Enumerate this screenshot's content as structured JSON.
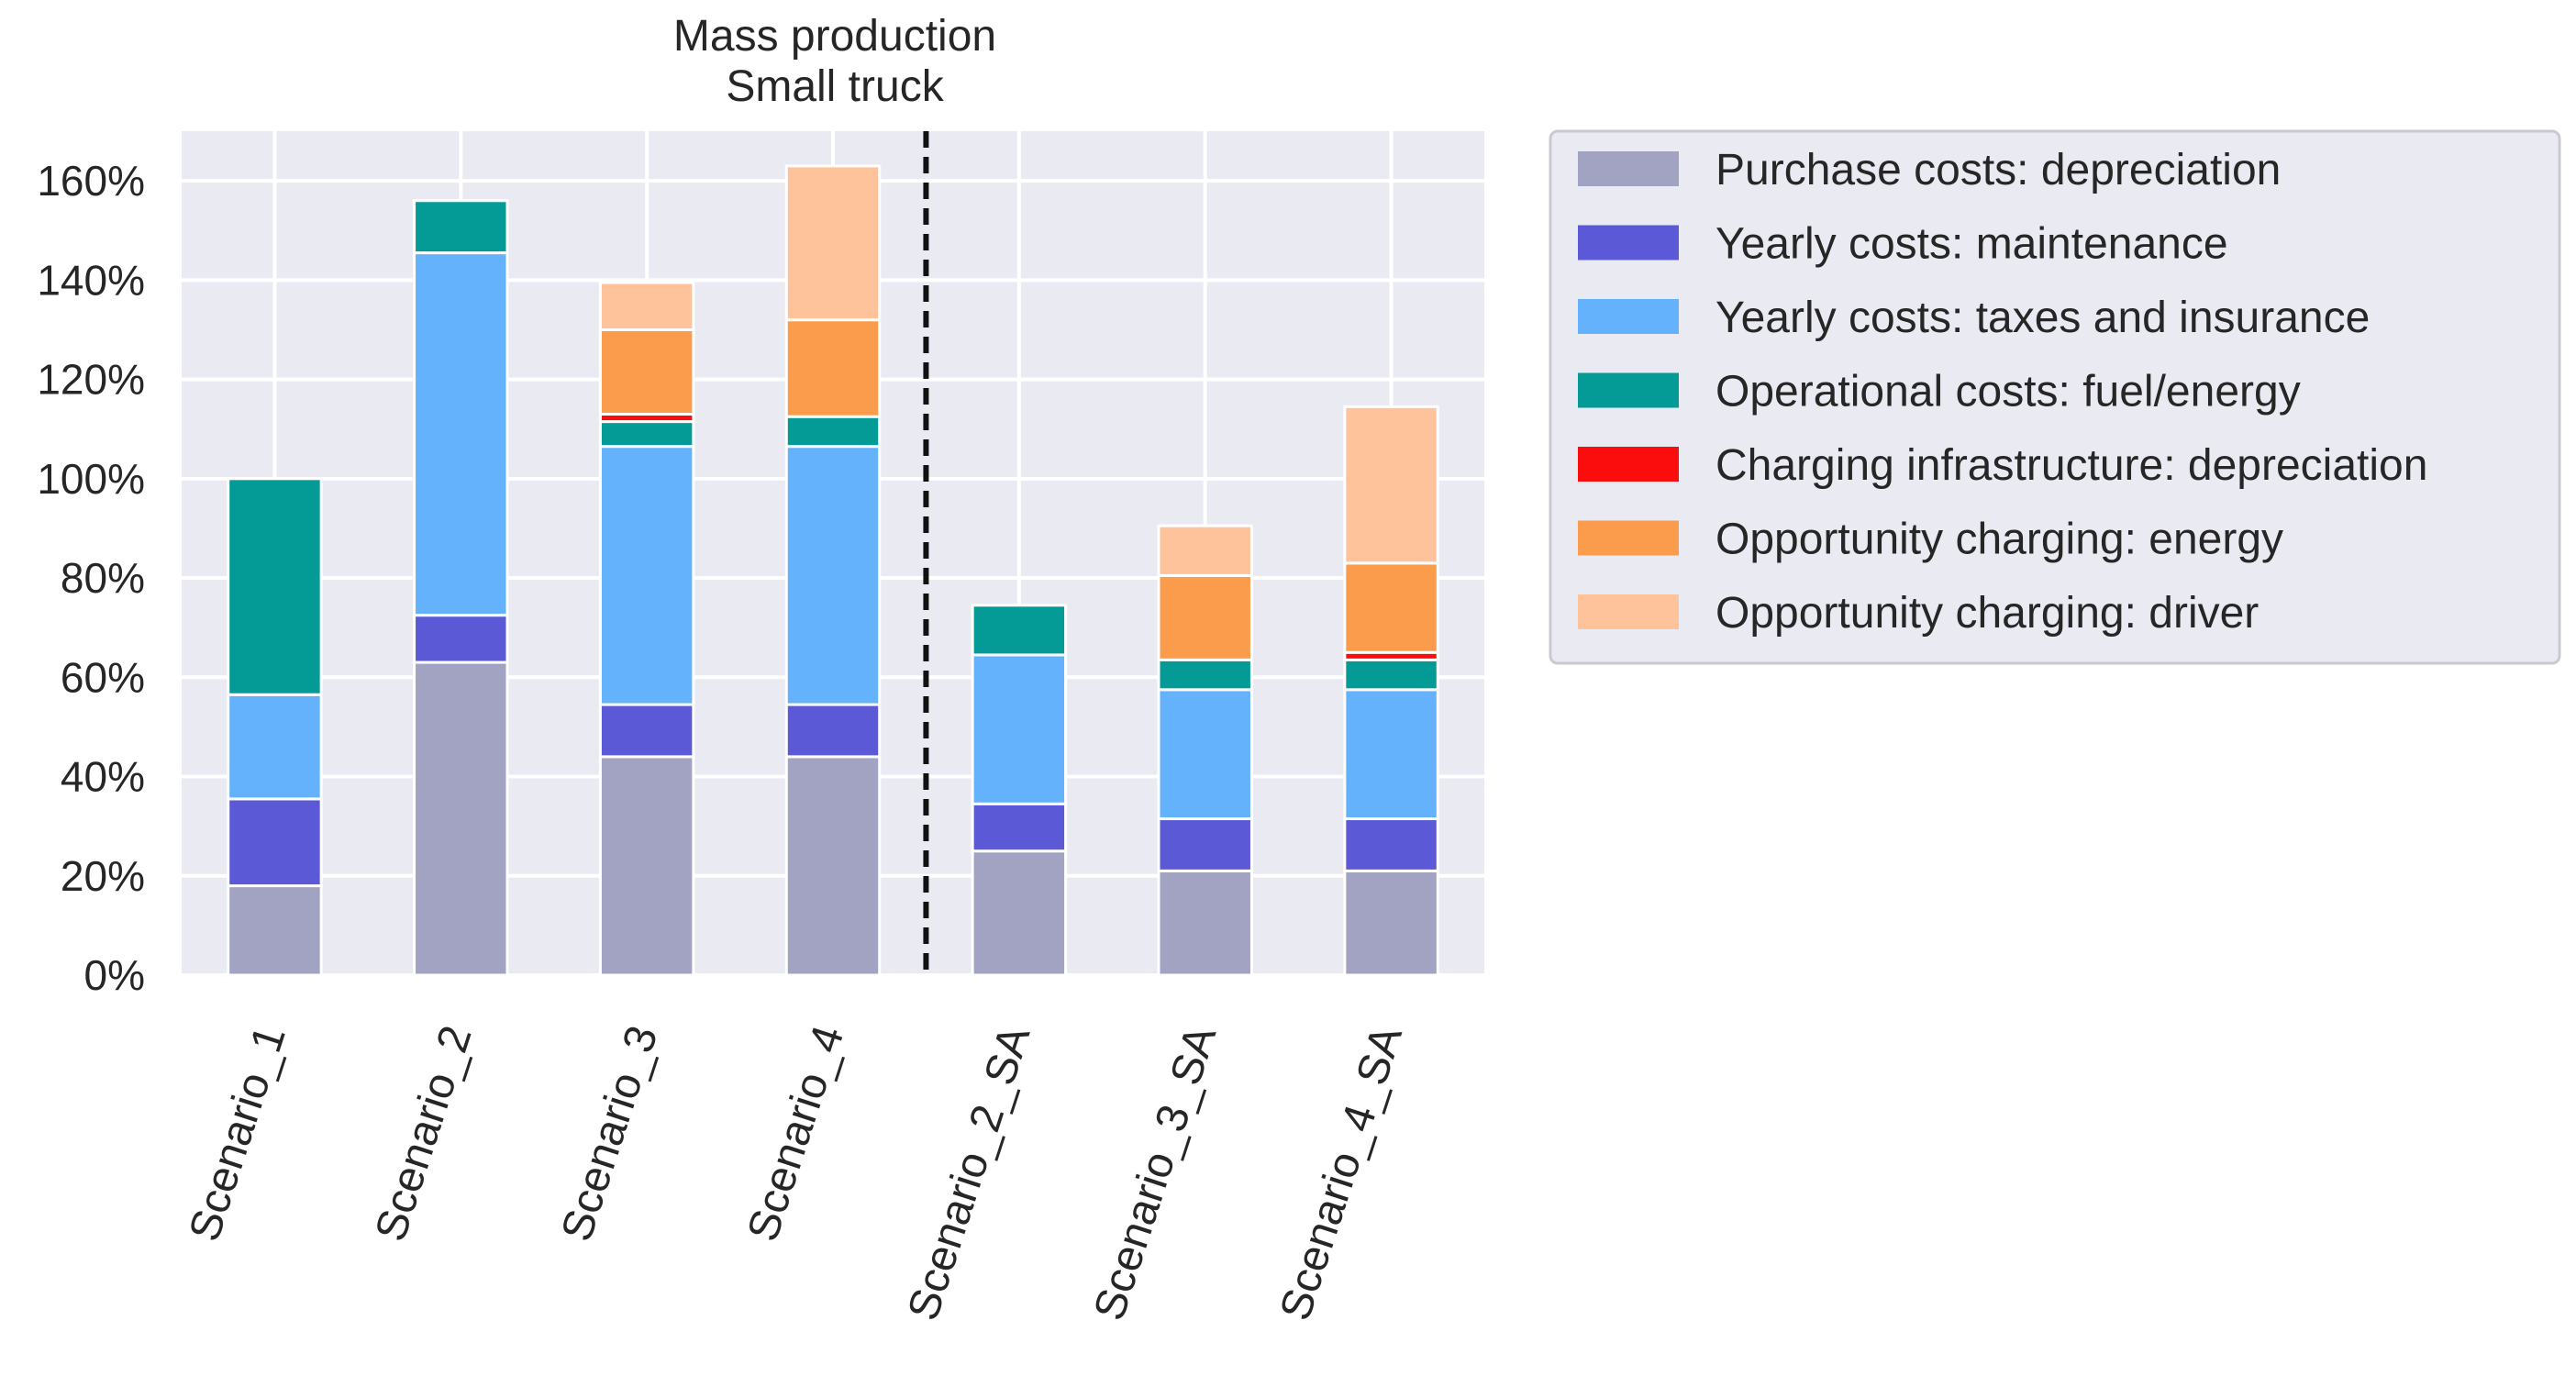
{
  "chart_data": {
    "type": "bar",
    "stacked": true,
    "title_lines": [
      "Mass production",
      "Small truck"
    ],
    "xlabel": "",
    "ylabel": "",
    "ylim": [
      0,
      170
    ],
    "yticks": [
      0,
      20,
      40,
      60,
      80,
      100,
      120,
      140,
      160
    ],
    "ytick_labels": [
      "0%",
      "20%",
      "40%",
      "60%",
      "80%",
      "100%",
      "120%",
      "140%",
      "160%"
    ],
    "categories": [
      "Scenario_1",
      "Scenario_2",
      "Scenario_3",
      "Scenario_4",
      "Scenario_2_SA",
      "Scenario_3_SA",
      "Scenario_4_SA"
    ],
    "separator_after_index": 3,
    "grid": true,
    "legend_position": "right",
    "series": [
      {
        "name": "Purchase costs: depreciation",
        "color": "#a2a2c2",
        "values": [
          18,
          63,
          44,
          44,
          25,
          21,
          21
        ]
      },
      {
        "name": "Yearly costs: maintenance",
        "color": "#5b59d6",
        "values": [
          17.5,
          9.5,
          10.5,
          10.5,
          9.5,
          10.5,
          10.5
        ]
      },
      {
        "name": "Yearly costs: taxes and insurance",
        "color": "#64b2fc",
        "values": [
          21,
          73,
          52,
          52,
          30,
          26,
          26
        ]
      },
      {
        "name": "Operational costs: fuel/energy",
        "color": "#049a96",
        "values": [
          43.5,
          10.5,
          5,
          6,
          10,
          6,
          6
        ]
      },
      {
        "name": "Charging infrastructure: depreciation",
        "color": "#fc0d0d",
        "values": [
          0,
          0,
          1.5,
          0,
          0,
          0,
          1.5
        ]
      },
      {
        "name": "Opportunity charging: energy",
        "color": "#fb9b4c",
        "values": [
          0,
          0,
          17,
          19.5,
          0,
          17,
          18
        ]
      },
      {
        "name": "Opportunity charging: driver",
        "color": "#fec39a",
        "values": [
          0,
          0,
          9.5,
          31,
          0,
          10,
          31.5
        ]
      }
    ]
  }
}
